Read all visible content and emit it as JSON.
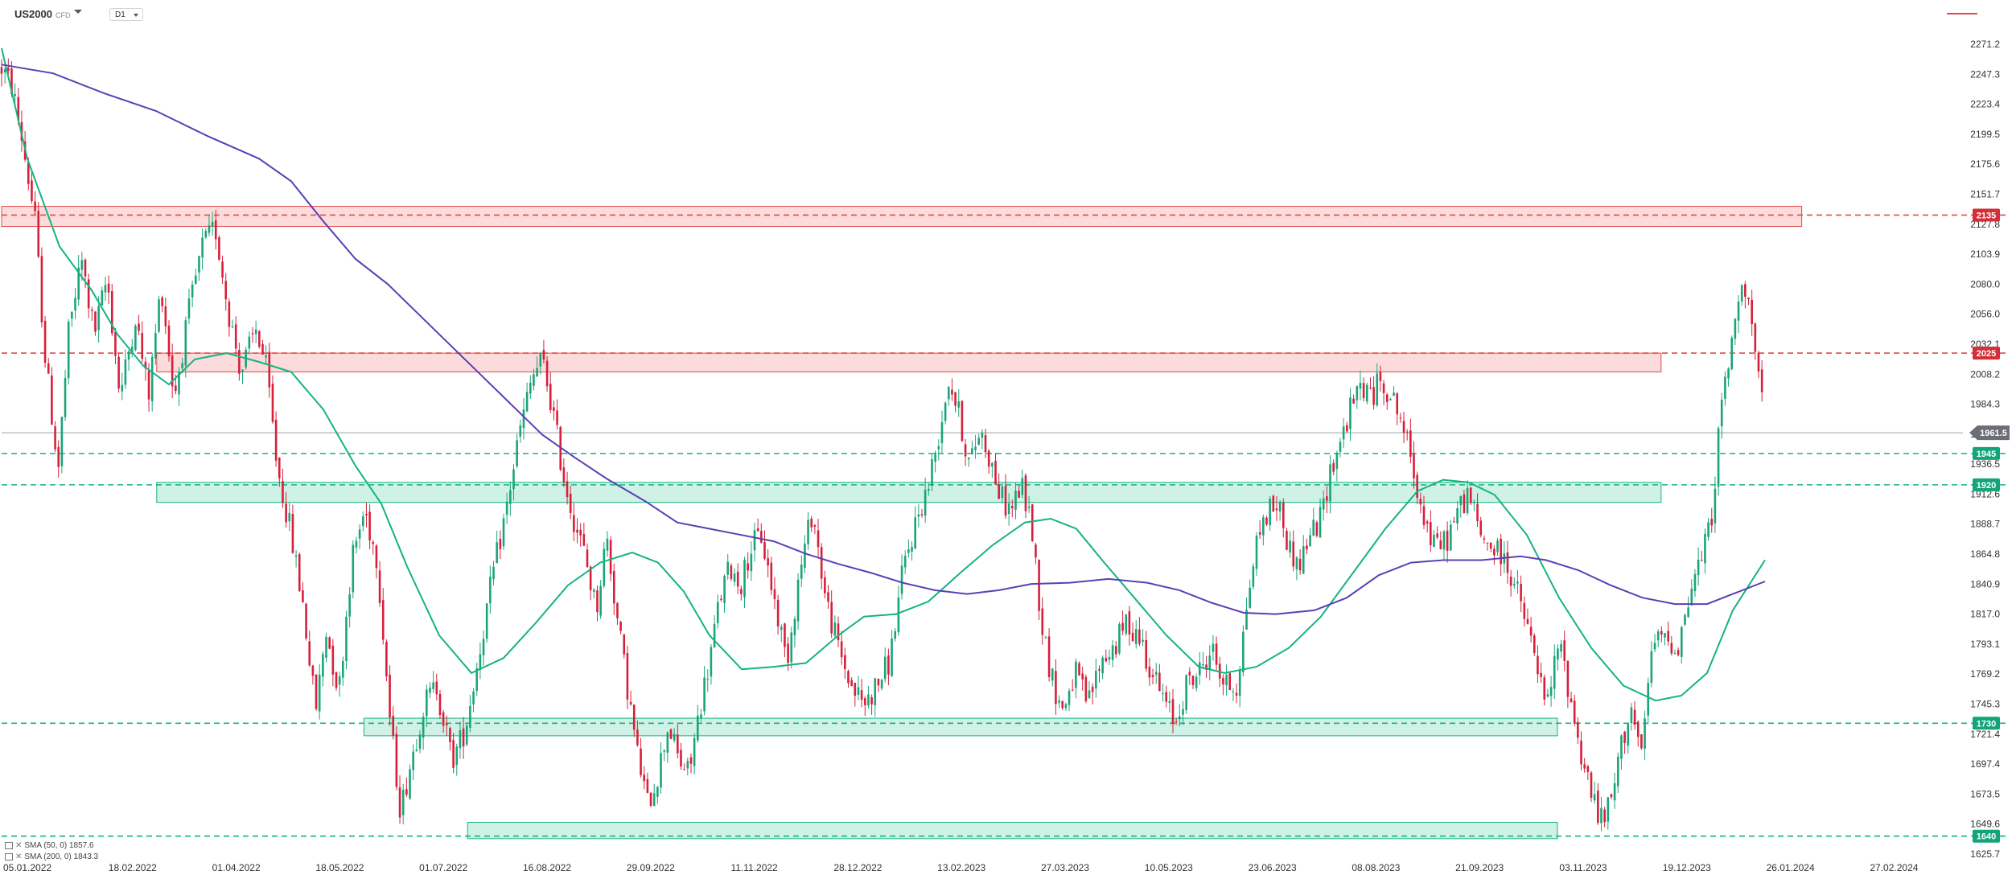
{
  "header": {
    "symbol": "US2000",
    "symbol_sub": "CFD",
    "timeframe": "D1"
  },
  "legend": [
    {
      "label": "SMA (50, 0)",
      "value": "1857.6",
      "color": "#14b383"
    },
    {
      "label": "SMA (200, 0)",
      "value": "1843.3",
      "color": "#5b3fb5"
    }
  ],
  "colors": {
    "up_candle": "#1aa47a",
    "down_candle": "#d6203a",
    "resistance_fill": "#fbd7d7",
    "resistance_line": "#e24a4a",
    "support_fill": "#cbefe2",
    "support_line": "#14b383",
    "sma50": "#14b383",
    "sma200": "#5b3fb5",
    "current_price": "#6b6f75"
  },
  "chart_data": {
    "type": "candlestick",
    "ylim": [
      1625.7,
      2271.2
    ],
    "y_ticks": [
      "2271.2",
      "2247.3",
      "2223.4",
      "2199.5",
      "2175.6",
      "2151.7",
      "2127.8",
      "2103.9",
      "2080.0",
      "2056.0",
      "2032.1",
      "2008.2",
      "1984.3",
      "1960.4",
      "1936.5",
      "1912.6",
      "1888.7",
      "1864.8",
      "1840.9",
      "1817.0",
      "1793.1",
      "1769.2",
      "1745.3",
      "1721.4",
      "1697.4",
      "1673.5",
      "1649.6",
      "1625.7"
    ],
    "x_ticks": [
      "05.01.2022",
      "18.02.2022",
      "01.04.2022",
      "18.05.2022",
      "01.07.2022",
      "16.08.2022",
      "29.09.2022",
      "11.11.2022",
      "28.12.2022",
      "13.02.2023",
      "27.03.2023",
      "10.05.2023",
      "23.06.2023",
      "08.08.2023",
      "21.09.2023",
      "03.11.2023",
      "19.12.2023",
      "26.01.2024",
      "27.02.2024"
    ],
    "current_price": {
      "value": 1961.5,
      "label": "1961.5"
    },
    "levels": [
      {
        "value": 2135,
        "label": "2135",
        "kind": "resistance"
      },
      {
        "value": 2025,
        "label": "2025",
        "kind": "resistance"
      },
      {
        "value": 1945,
        "label": "1945",
        "kind": "support"
      },
      {
        "value": 1920,
        "label": "1920",
        "kind": "support"
      },
      {
        "value": 1730,
        "label": "1730",
        "kind": "support"
      },
      {
        "value": 1640,
        "label": "1640",
        "kind": "support"
      }
    ],
    "zones": [
      {
        "from": "05.01.2022",
        "to": "26.01.2024",
        "low": 2126,
        "high": 2142,
        "kind": "resistance"
      },
      {
        "from": "18.02.2022",
        "to": "19.12.2023",
        "low": 2010,
        "high": 2025,
        "kind": "resistance"
      },
      {
        "from": "18.02.2022",
        "to": "19.12.2023",
        "low": 1906,
        "high": 1922,
        "kind": "support"
      },
      {
        "from": "18.05.2022",
        "to": "03.11.2023",
        "low": 1720,
        "high": 1734,
        "kind": "support"
      },
      {
        "from": "01.07.2022",
        "to": "03.11.2023",
        "low": 1638,
        "high": 1651,
        "kind": "support"
      }
    ],
    "series": [
      {
        "name": "SMA (50, 0)",
        "color": "#14b383",
        "points": [
          [
            0,
            2268
          ],
          [
            20,
            2180
          ],
          [
            45,
            2110
          ],
          [
            70,
            2075
          ],
          [
            90,
            2040
          ],
          [
            110,
            2015
          ],
          [
            130,
            2000
          ],
          [
            150,
            2020
          ],
          [
            175,
            2025
          ],
          [
            200,
            2018
          ],
          [
            225,
            2010
          ],
          [
            250,
            1980
          ],
          [
            275,
            1935
          ],
          [
            295,
            1905
          ],
          [
            315,
            1855
          ],
          [
            340,
            1800
          ],
          [
            365,
            1770
          ],
          [
            390,
            1782
          ],
          [
            415,
            1810
          ],
          [
            440,
            1840
          ],
          [
            465,
            1858
          ],
          [
            490,
            1866
          ],
          [
            510,
            1858
          ],
          [
            530,
            1835
          ],
          [
            550,
            1800
          ],
          [
            575,
            1773
          ],
          [
            600,
            1775
          ],
          [
            625,
            1778
          ],
          [
            650,
            1800
          ],
          [
            670,
            1815
          ],
          [
            695,
            1817
          ],
          [
            720,
            1827
          ],
          [
            745,
            1850
          ],
          [
            770,
            1872
          ],
          [
            795,
            1890
          ],
          [
            815,
            1893
          ],
          [
            835,
            1885
          ],
          [
            855,
            1860
          ],
          [
            880,
            1830
          ],
          [
            905,
            1800
          ],
          [
            930,
            1775
          ],
          [
            950,
            1770
          ],
          [
            975,
            1775
          ],
          [
            1000,
            1790
          ],
          [
            1025,
            1815
          ],
          [
            1050,
            1850
          ],
          [
            1075,
            1885
          ],
          [
            1100,
            1915
          ],
          [
            1120,
            1924
          ],
          [
            1140,
            1922
          ],
          [
            1160,
            1912
          ],
          [
            1185,
            1880
          ],
          [
            1210,
            1830
          ],
          [
            1235,
            1790
          ],
          [
            1260,
            1760
          ],
          [
            1285,
            1748
          ],
          [
            1305,
            1752
          ],
          [
            1325,
            1770
          ],
          [
            1345,
            1820
          ],
          [
            1370,
            1860
          ]
        ]
      },
      {
        "name": "SMA (200, 0)",
        "color": "#5b3fb5",
        "points": [
          [
            0,
            2255
          ],
          [
            40,
            2248
          ],
          [
            80,
            2232
          ],
          [
            120,
            2218
          ],
          [
            160,
            2198
          ],
          [
            200,
            2180
          ],
          [
            225,
            2162
          ],
          [
            250,
            2130
          ],
          [
            275,
            2100
          ],
          [
            300,
            2080
          ],
          [
            325,
            2055
          ],
          [
            350,
            2030
          ],
          [
            375,
            2005
          ],
          [
            400,
            1980
          ],
          [
            420,
            1960
          ],
          [
            445,
            1942
          ],
          [
            470,
            1925
          ],
          [
            500,
            1907
          ],
          [
            525,
            1890
          ],
          [
            550,
            1885
          ],
          [
            575,
            1880
          ],
          [
            600,
            1875
          ],
          [
            625,
            1865
          ],
          [
            650,
            1857
          ],
          [
            675,
            1850
          ],
          [
            700,
            1842
          ],
          [
            725,
            1836
          ],
          [
            750,
            1833
          ],
          [
            775,
            1836
          ],
          [
            800,
            1841
          ],
          [
            830,
            1842
          ],
          [
            860,
            1845
          ],
          [
            890,
            1842
          ],
          [
            915,
            1836
          ],
          [
            940,
            1826
          ],
          [
            965,
            1818
          ],
          [
            990,
            1817
          ],
          [
            1020,
            1820
          ],
          [
            1045,
            1830
          ],
          [
            1070,
            1848
          ],
          [
            1095,
            1858
          ],
          [
            1120,
            1860
          ],
          [
            1150,
            1860
          ],
          [
            1180,
            1863
          ],
          [
            1200,
            1860
          ],
          [
            1225,
            1852
          ],
          [
            1250,
            1840
          ],
          [
            1275,
            1830
          ],
          [
            1300,
            1825
          ],
          [
            1325,
            1825
          ],
          [
            1345,
            1833
          ],
          [
            1370,
            1843
          ]
        ]
      }
    ],
    "candle_path": [
      [
        0,
        2252
      ],
      [
        8,
        2238
      ],
      [
        16,
        2195
      ],
      [
        26,
        2130
      ],
      [
        34,
        2020
      ],
      [
        44,
        1932
      ],
      [
        52,
        2040
      ],
      [
        62,
        2100
      ],
      [
        72,
        2040
      ],
      [
        82,
        2085
      ],
      [
        92,
        1990
      ],
      [
        104,
        2055
      ],
      [
        114,
        1990
      ],
      [
        124,
        2080
      ],
      [
        134,
        1990
      ],
      [
        146,
        2060
      ],
      [
        156,
        2110
      ],
      [
        166,
        2125
      ],
      [
        176,
        2060
      ],
      [
        186,
        2010
      ],
      [
        198,
        2045
      ],
      [
        206,
        2010
      ],
      [
        214,
        1935
      ],
      [
        224,
        1885
      ],
      [
        234,
        1825
      ],
      [
        244,
        1740
      ],
      [
        252,
        1805
      ],
      [
        262,
        1755
      ],
      [
        272,
        1860
      ],
      [
        282,
        1900
      ],
      [
        292,
        1860
      ],
      [
        302,
        1730
      ],
      [
        310,
        1660
      ],
      [
        318,
        1700
      ],
      [
        328,
        1745
      ],
      [
        338,
        1760
      ],
      [
        350,
        1700
      ],
      [
        360,
        1725
      ],
      [
        370,
        1780
      ],
      [
        382,
        1850
      ],
      [
        392,
        1900
      ],
      [
        402,
        1960
      ],
      [
        412,
        2005
      ],
      [
        420,
        2020
      ],
      [
        428,
        1980
      ],
      [
        436,
        1930
      ],
      [
        444,
        1895
      ],
      [
        454,
        1860
      ],
      [
        462,
        1820
      ],
      [
        470,
        1880
      ],
      [
        478,
        1815
      ],
      [
        486,
        1760
      ],
      [
        494,
        1705
      ],
      [
        502,
        1665
      ],
      [
        510,
        1690
      ],
      [
        518,
        1730
      ],
      [
        526,
        1700
      ],
      [
        534,
        1690
      ],
      [
        542,
        1740
      ],
      [
        550,
        1780
      ],
      [
        558,
        1830
      ],
      [
        566,
        1855
      ],
      [
        574,
        1840
      ],
      [
        582,
        1870
      ],
      [
        590,
        1880
      ],
      [
        600,
        1830
      ],
      [
        610,
        1780
      ],
      [
        620,
        1850
      ],
      [
        630,
        1900
      ],
      [
        640,
        1830
      ],
      [
        650,
        1790
      ],
      [
        660,
        1760
      ],
      [
        670,
        1745
      ],
      [
        680,
        1760
      ],
      [
        690,
        1780
      ],
      [
        700,
        1850
      ],
      [
        710,
        1890
      ],
      [
        720,
        1920
      ],
      [
        728,
        1960
      ],
      [
        736,
        2005
      ],
      [
        744,
        1975
      ],
      [
        752,
        1935
      ],
      [
        760,
        1965
      ],
      [
        768,
        1940
      ],
      [
        776,
        1910
      ],
      [
        784,
        1900
      ],
      [
        792,
        1920
      ],
      [
        800,
        1890
      ],
      [
        808,
        1810
      ],
      [
        816,
        1765
      ],
      [
        824,
        1740
      ],
      [
        834,
        1770
      ],
      [
        844,
        1745
      ],
      [
        854,
        1780
      ],
      [
        864,
        1790
      ],
      [
        874,
        1810
      ],
      [
        884,
        1800
      ],
      [
        894,
        1770
      ],
      [
        904,
        1745
      ],
      [
        912,
        1730
      ],
      [
        920,
        1760
      ],
      [
        930,
        1770
      ],
      [
        940,
        1790
      ],
      [
        950,
        1760
      ],
      [
        960,
        1760
      ],
      [
        968,
        1830
      ],
      [
        976,
        1880
      ],
      [
        984,
        1900
      ],
      [
        992,
        1905
      ],
      [
        1000,
        1870
      ],
      [
        1008,
        1855
      ],
      [
        1016,
        1880
      ],
      [
        1024,
        1890
      ],
      [
        1032,
        1930
      ],
      [
        1040,
        1955
      ],
      [
        1048,
        1980
      ],
      [
        1056,
        2000
      ],
      [
        1064,
        1990
      ],
      [
        1072,
        2005
      ],
      [
        1080,
        1990
      ],
      [
        1088,
        1970
      ],
      [
        1096,
        1935
      ],
      [
        1104,
        1900
      ],
      [
        1112,
        1870
      ],
      [
        1122,
        1875
      ],
      [
        1132,
        1900
      ],
      [
        1140,
        1915
      ],
      [
        1148,
        1880
      ],
      [
        1158,
        1870
      ],
      [
        1168,
        1860
      ],
      [
        1176,
        1840
      ],
      [
        1184,
        1810
      ],
      [
        1192,
        1780
      ],
      [
        1200,
        1740
      ],
      [
        1210,
        1795
      ],
      [
        1218,
        1755
      ],
      [
        1226,
        1710
      ],
      [
        1234,
        1680
      ],
      [
        1242,
        1650
      ],
      [
        1250,
        1665
      ],
      [
        1258,
        1710
      ],
      [
        1266,
        1745
      ],
      [
        1274,
        1700
      ],
      [
        1282,
        1790
      ],
      [
        1292,
        1800
      ],
      [
        1302,
        1790
      ],
      [
        1312,
        1835
      ],
      [
        1320,
        1860
      ],
      [
        1328,
        1890
      ],
      [
        1334,
        1960
      ],
      [
        1340,
        2010
      ],
      [
        1346,
        2040
      ],
      [
        1352,
        2090
      ],
      [
        1358,
        2060
      ],
      [
        1364,
        2010
      ],
      [
        1370,
        1965
      ]
    ]
  }
}
